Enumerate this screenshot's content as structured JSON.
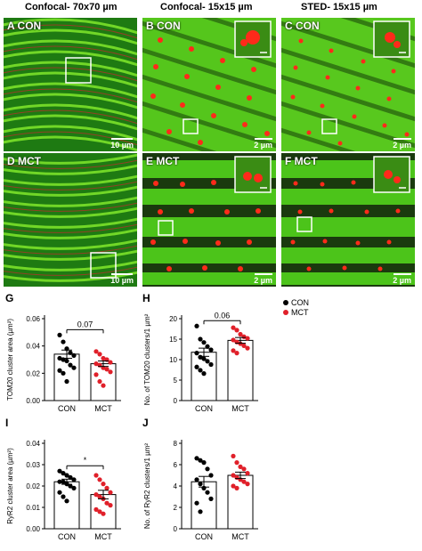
{
  "column_titles": [
    "Confocal- 70x70 µm",
    "Confocal- 15x15 µm",
    "STED- 15x15 µm"
  ],
  "panels": [
    {
      "label": "A CON",
      "scale": "10 µm"
    },
    {
      "label": "B CON",
      "scale": "2 µm"
    },
    {
      "label": "C CON",
      "scale": "2 µm"
    },
    {
      "label": "D MCT",
      "scale": "10 µm"
    },
    {
      "label": "E MCT",
      "scale": "2 µm"
    },
    {
      "label": "F MCT",
      "scale": "2 µm"
    }
  ],
  "legend": [
    {
      "name": "CON",
      "color": "#000000"
    },
    {
      "name": "MCT",
      "color": "#e0202a"
    }
  ],
  "chart_data": [
    {
      "panel": "G",
      "type": "bar",
      "categories": [
        "CON",
        "MCT"
      ],
      "values": [
        0.034,
        0.027
      ],
      "sem": [
        0.003,
        0.002
      ],
      "ylabel": "TOM20 cluster area (µm²)",
      "yticks": [
        "0.00",
        "0.02",
        "0.04",
        "0.06"
      ],
      "ylim": [
        0,
        0.06
      ],
      "annotation": "0.07",
      "points": [
        [
          0.048,
          0.043,
          0.038,
          0.035,
          0.033,
          0.031,
          0.03,
          0.029,
          0.026,
          0.024,
          0.022,
          0.02,
          0.014
        ],
        [
          0.036,
          0.034,
          0.031,
          0.03,
          0.028,
          0.027,
          0.026,
          0.024,
          0.023,
          0.021,
          0.019,
          0.014,
          0.011
        ]
      ]
    },
    {
      "panel": "H",
      "type": "bar",
      "categories": [
        "CON",
        "MCT"
      ],
      "values": [
        11.8,
        14.7
      ],
      "sem": [
        1.0,
        0.7
      ],
      "ylabel": "No. of TOM20 clusters/1 µm²",
      "yticks": [
        "0",
        "5",
        "10",
        "15",
        "20"
      ],
      "ylim": [
        0,
        20
      ],
      "annotation": "0.06",
      "points": [
        [
          18.2,
          15.0,
          14.2,
          13.2,
          12.4,
          11.6,
          10.6,
          10.2,
          9.6,
          8.8,
          8.2,
          7.4,
          6.6
        ],
        [
          17.8,
          17.2,
          16.2,
          15.6,
          15.2,
          14.8,
          14.3,
          13.9,
          13.4,
          12.8,
          12.2,
          11.6
        ]
      ]
    },
    {
      "panel": "I",
      "type": "bar",
      "categories": [
        "CON",
        "MCT"
      ],
      "values": [
        0.022,
        0.016
      ],
      "sem": [
        0.0012,
        0.002
      ],
      "ylabel": "RyR2 cluster area (µm²)",
      "yticks": [
        "0.00",
        "0.01",
        "0.02",
        "0.03",
        "0.04"
      ],
      "ylim": [
        0,
        0.04
      ],
      "annotation": "*",
      "points": [
        [
          0.027,
          0.026,
          0.025,
          0.024,
          0.023,
          0.022,
          0.022,
          0.021,
          0.02,
          0.019,
          0.017,
          0.015,
          0.013
        ],
        [
          0.025,
          0.023,
          0.021,
          0.019,
          0.017,
          0.016,
          0.015,
          0.014,
          0.012,
          0.011,
          0.009,
          0.008,
          0.007
        ]
      ]
    },
    {
      "panel": "J",
      "type": "bar",
      "categories": [
        "CON",
        "MCT"
      ],
      "values": [
        4.4,
        5.0
      ],
      "sem": [
        0.5,
        0.3
      ],
      "ylabel": "No. of RyR2 clusters/1 µm²",
      "yticks": [
        "0",
        "2",
        "4",
        "6",
        "8"
      ],
      "ylim": [
        0,
        8
      ],
      "annotation": "",
      "points": [
        [
          6.6,
          6.4,
          6.2,
          5.6,
          5.0,
          4.6,
          4.2,
          3.8,
          3.4,
          2.8,
          2.4,
          1.6
        ],
        [
          6.8,
          6.2,
          5.8,
          5.6,
          5.2,
          5.0,
          4.8,
          4.6,
          4.4,
          4.2,
          4.0,
          3.8
        ]
      ]
    }
  ]
}
